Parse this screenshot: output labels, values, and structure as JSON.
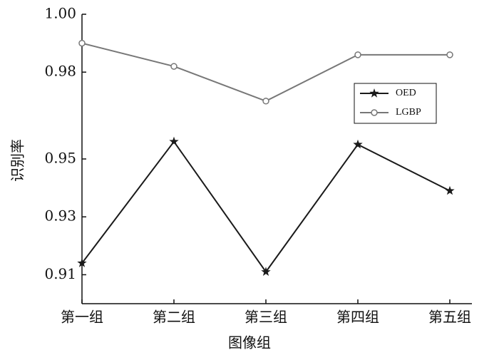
{
  "chart_data": {
    "type": "line",
    "x_label": "图像组",
    "y_label": "识别率",
    "categories": [
      "第一组",
      "第二组",
      "第三组",
      "第四组",
      "第五组"
    ],
    "series": [
      {
        "name": "OED",
        "color": "#1a1a1a",
        "marker": "star",
        "values": [
          0.914,
          0.956,
          0.911,
          0.955,
          0.939
        ]
      },
      {
        "name": "LGBP",
        "color": "#777777",
        "marker": "circle",
        "values": [
          0.99,
          0.982,
          0.97,
          0.986,
          0.986
        ]
      }
    ],
    "ylim": [
      0.9,
      1.0
    ],
    "yticks": [
      0.91,
      0.93,
      0.95,
      0.98,
      {
        "value": 1.0,
        "label": "1.00"
      }
    ],
    "grid": false,
    "legend": "upper right"
  }
}
